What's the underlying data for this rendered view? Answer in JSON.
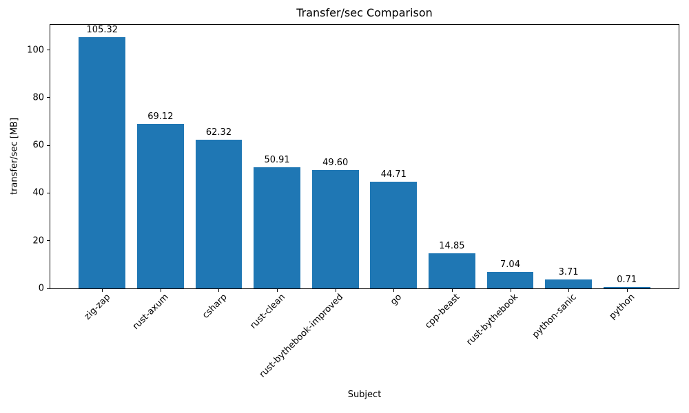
{
  "chart_data": {
    "type": "bar",
    "title": "Transfer/sec Comparison",
    "xlabel": "Subject",
    "ylabel": "transfer/sec [MB]",
    "categories": [
      "zig-zap",
      "rust-axum",
      "csharp",
      "rust-clean",
      "rust-bythebook-improved",
      "go",
      "cpp-beast",
      "rust-bythebook",
      "python-sanic",
      "python"
    ],
    "values": [
      105.32,
      69.12,
      62.32,
      50.91,
      49.6,
      44.71,
      14.85,
      7.04,
      3.71,
      0.71
    ],
    "value_labels": [
      "105.32",
      "69.12",
      "62.32",
      "50.91",
      "49.60",
      "44.71",
      "14.85",
      "7.04",
      "3.71",
      "0.71"
    ],
    "yticks": [
      0,
      20,
      40,
      60,
      80,
      100
    ],
    "ylim": [
      0,
      110.59
    ],
    "bar_color": "#1f77b4",
    "axis_color": "#000000",
    "text_color": "#000000",
    "background_color": "#ffffff",
    "grid": false,
    "legend": null
  }
}
